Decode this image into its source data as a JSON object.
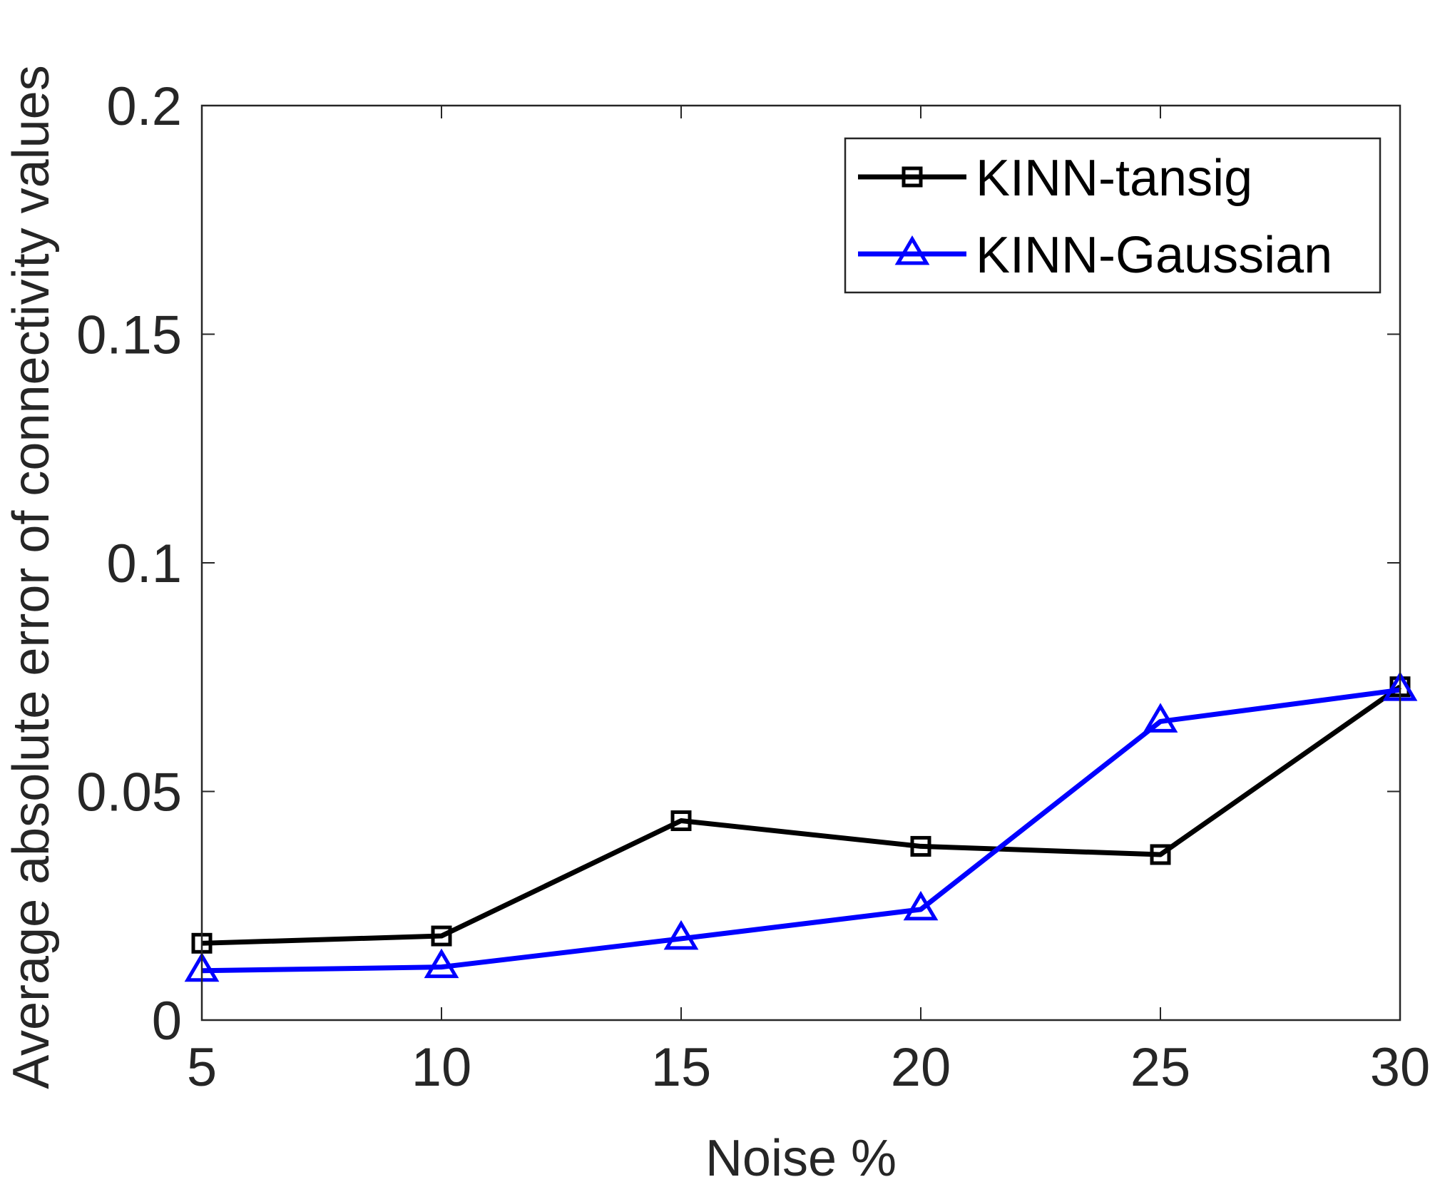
{
  "chart_data": {
    "type": "line",
    "title": "",
    "xlabel": "Noise %",
    "ylabel": "Average absolute error of connectivity values",
    "x": [
      5,
      10,
      15,
      20,
      25,
      30
    ],
    "xlim": [
      5,
      30
    ],
    "ylim": [
      0,
      0.2
    ],
    "xticks": [
      5,
      10,
      15,
      20,
      25,
      30
    ],
    "xtick_labels": [
      "5",
      "10",
      "15",
      "20",
      "25",
      "30"
    ],
    "yticks": [
      0,
      0.05,
      0.1,
      0.15,
      0.2
    ],
    "ytick_labels": [
      "0",
      "0.05",
      "0.1",
      "0.15",
      "0.2"
    ],
    "grid": false,
    "legend_position": "top-right",
    "series": [
      {
        "name": "KINN-tansig",
        "color": "#000000",
        "marker": "square",
        "values": [
          0.0168,
          0.0184,
          0.0436,
          0.038,
          0.0362,
          0.0729
        ]
      },
      {
        "name": "KINN-Gaussian",
        "color": "#0000ff",
        "marker": "triangle",
        "values": [
          0.0108,
          0.0116,
          0.0178,
          0.0242,
          0.0653,
          0.0722
        ]
      }
    ]
  }
}
